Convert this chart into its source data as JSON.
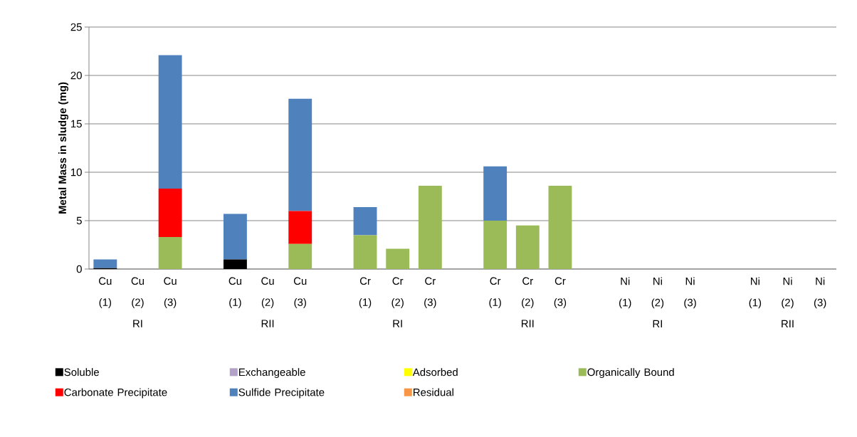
{
  "chart_data": {
    "type": "bar",
    "stacked": true,
    "ylabel": "Metal Mass in sludge (mg)",
    "categories": [
      "Cu (1)",
      "Cu (2) RI",
      "Cu (3)",
      null,
      "Cu (1)",
      "Cu (2) RII",
      "Cu (3)",
      null,
      "Cr (1)",
      "Cr (2) RI",
      "Cr (3)",
      null,
      "Cr (1)",
      "Cr (2) RII",
      "Cr (3)",
      null,
      "Ni (1)",
      "Ni (2) RI",
      "Ni (3)",
      null,
      "Ni (1)",
      "Ni (2) RII",
      "Ni (3)"
    ],
    "ylim": [
      0,
      25
    ],
    "yticks": [
      0,
      5,
      10,
      15,
      20,
      25
    ],
    "grid": "y",
    "legend": "bottom",
    "series": [
      {
        "name": "Soluble",
        "color": "#000000",
        "values": [
          0.1,
          0,
          0,
          null,
          1.0,
          0,
          0,
          null,
          0,
          0,
          0,
          null,
          0,
          0,
          0,
          null,
          0,
          0,
          0,
          null,
          0,
          0,
          0
        ]
      },
      {
        "name": "Exchangeable",
        "color": "#b3a2c7",
        "values": [
          0,
          0,
          0,
          null,
          0,
          0,
          0,
          null,
          0,
          0,
          0,
          null,
          0,
          0,
          0,
          null,
          0,
          0,
          0,
          null,
          0,
          0,
          0
        ]
      },
      {
        "name": "Adsorbed",
        "color": "#ffff00",
        "values": [
          0,
          0,
          0,
          null,
          0,
          0,
          0,
          null,
          0,
          0,
          0,
          null,
          0,
          0,
          0,
          null,
          0,
          0,
          0,
          null,
          0,
          0,
          0
        ]
      },
      {
        "name": "Organically Bound",
        "color": "#9bbb59",
        "values": [
          0,
          0,
          3.3,
          null,
          0,
          0,
          2.6,
          null,
          3.5,
          2.1,
          8.6,
          null,
          5.0,
          4.5,
          8.6,
          null,
          0,
          0,
          0,
          null,
          0,
          0,
          0
        ]
      },
      {
        "name": "Carbonate Precipitate",
        "color": "#ff0000",
        "values": [
          0,
          0,
          5.0,
          null,
          0,
          0,
          3.4,
          null,
          0,
          0,
          0,
          null,
          0,
          0,
          0,
          null,
          0,
          0,
          0,
          null,
          0,
          0,
          0
        ]
      },
      {
        "name": "Sulfide Precipitate",
        "color": "#4f81bd",
        "values": [
          0.9,
          0,
          13.8,
          null,
          4.7,
          0,
          11.6,
          null,
          2.9,
          0,
          0,
          null,
          5.6,
          0,
          0,
          null,
          0,
          0,
          0,
          null,
          0,
          0,
          0
        ]
      },
      {
        "name": "Residual",
        "color": "#f79646",
        "values": [
          0,
          0,
          0,
          null,
          0,
          0,
          0,
          null,
          0,
          0,
          0,
          null,
          0,
          0,
          0,
          null,
          0,
          0,
          0,
          null,
          0,
          0,
          0
        ]
      }
    ]
  }
}
